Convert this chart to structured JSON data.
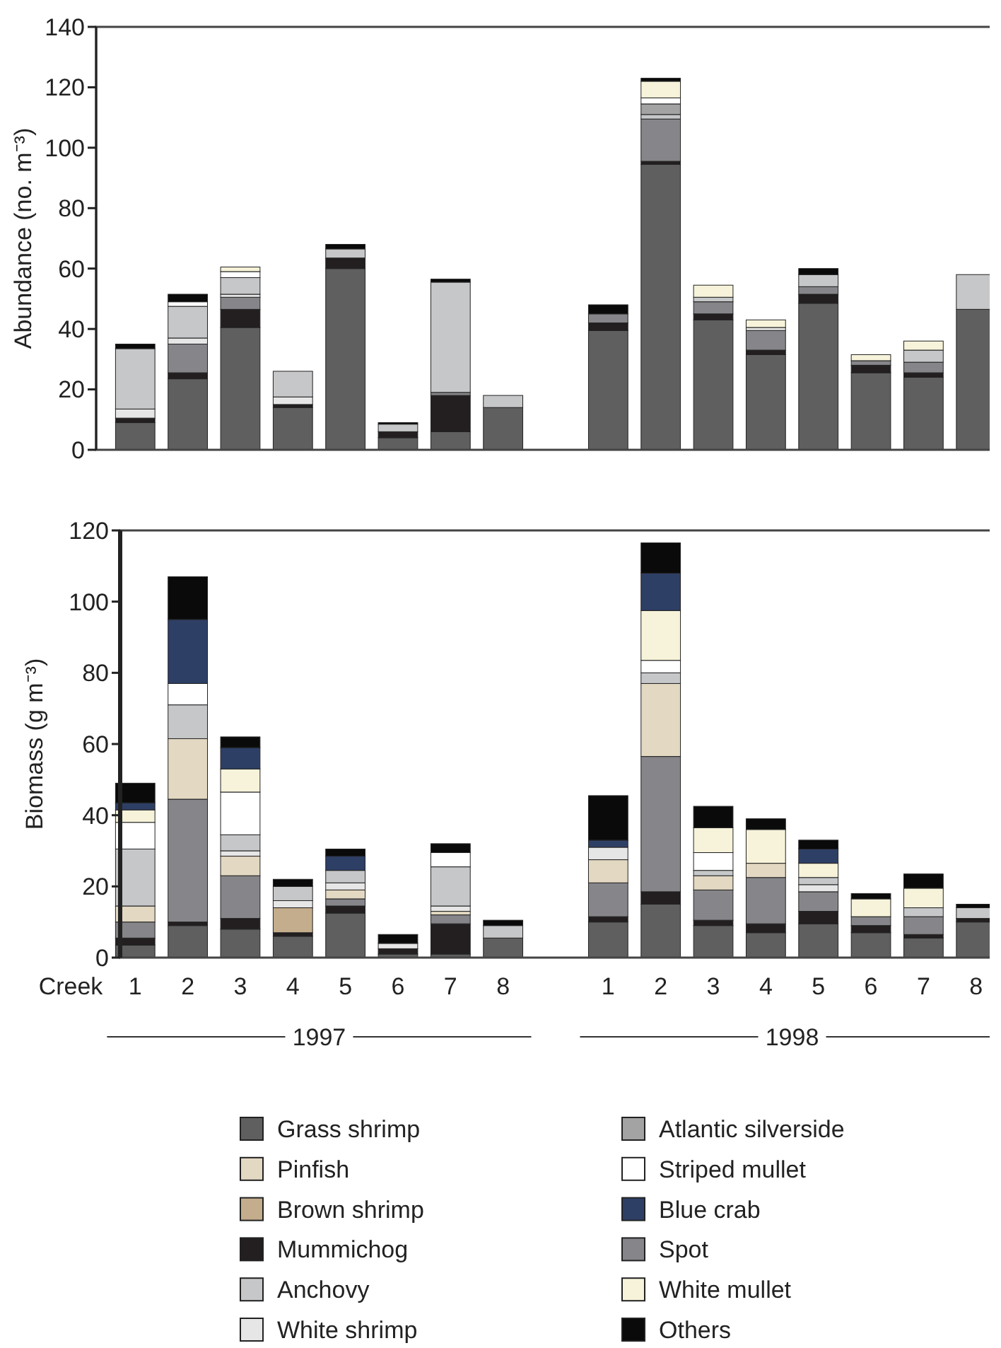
{
  "chart_data": [
    {
      "type": "bar",
      "stacked": true,
      "ylabel": "Abundance (no. m⁻³)",
      "ylim": [
        0,
        140
      ],
      "yticks": [
        0,
        20,
        40,
        60,
        80,
        100,
        120,
        140
      ],
      "tick_labels": "y",
      "categories": [
        "1",
        "2",
        "3",
        "4",
        "5",
        "6",
        "7",
        "8",
        null,
        "1",
        "2",
        "3",
        "4",
        "5",
        "6",
        "7",
        "8"
      ],
      "series": [
        {
          "color": "#5f5f5f",
          "values": [
            9,
            23.5,
            40.5,
            14,
            60,
            4,
            6,
            14,
            null,
            39.5,
            94.5,
            43,
            31.5,
            48.5,
            25.5,
            24,
            46.5
          ]
        },
        {
          "color": "#231f20",
          "values": [
            1.5,
            2,
            6,
            1,
            3.5,
            2,
            12,
            null,
            null,
            2.5,
            1,
            2,
            1.5,
            3,
            2.5,
            1.5,
            null
          ]
        },
        {
          "color": "#86868a",
          "values": [
            null,
            9.5,
            4,
            null,
            null,
            null,
            1,
            null,
            null,
            3,
            14,
            4,
            6.5,
            2.5,
            1.5,
            3.5,
            null
          ]
        },
        {
          "color": "#e6e6e6",
          "values": [
            3,
            2,
            1,
            2.5,
            null,
            null,
            null,
            null,
            null,
            null,
            null,
            null,
            1,
            null,
            null,
            null,
            null
          ]
        },
        {
          "color": "#c6c7c9",
          "values": [
            20,
            10.5,
            5.5,
            8.5,
            3,
            2.5,
            36.5,
            4,
            null,
            null,
            1.5,
            1.5,
            null,
            4,
            null,
            4,
            11.5
          ]
        },
        {
          "color": "#a3a3a3",
          "values": [
            null,
            null,
            null,
            null,
            null,
            null,
            null,
            null,
            null,
            null,
            3.5,
            null,
            null,
            null,
            null,
            null,
            null
          ]
        },
        {
          "color": "#ffffff",
          "values": [
            null,
            1.5,
            2,
            null,
            null,
            null,
            null,
            null,
            null,
            null,
            2,
            null,
            null,
            null,
            null,
            null,
            null
          ]
        },
        {
          "color": "#f6f3da",
          "values": [
            null,
            null,
            1.5,
            null,
            null,
            null,
            null,
            null,
            null,
            null,
            5.5,
            4,
            2.5,
            null,
            2,
            3,
            null
          ]
        },
        {
          "color": "#0a0a0a",
          "values": [
            1.5,
            2.5,
            null,
            null,
            1.5,
            0.5,
            1,
            null,
            null,
            3,
            1,
            null,
            null,
            2,
            null,
            null,
            null
          ]
        }
      ]
    },
    {
      "type": "bar",
      "stacked": true,
      "ylabel": "Biomass (g m⁻³)",
      "xlabel": "Creek",
      "ylim": [
        0,
        120
      ],
      "yticks": [
        0,
        20,
        40,
        60,
        80,
        100,
        120
      ],
      "legend": "bottom",
      "annotations": [
        "1997",
        "1998"
      ],
      "categories": [
        "1",
        "2",
        "3",
        "4",
        "5",
        "6",
        "7",
        "8",
        null,
        "1",
        "2",
        "3",
        "4",
        "5",
        "6",
        "7",
        "8"
      ],
      "series": [
        {
          "name": "Grass shrimp",
          "color": "#5f5f5f",
          "values": [
            3.5,
            9,
            8,
            6,
            12.5,
            1,
            1,
            5.5,
            null,
            10,
            15,
            9,
            7,
            9.5,
            7,
            5.5,
            10
          ]
        },
        {
          "name": "Mummichog",
          "color": "#231f20",
          "values": [
            2,
            1,
            3,
            1,
            2,
            1.5,
            8.5,
            null,
            null,
            1.5,
            3.5,
            1.5,
            2.5,
            3.5,
            2,
            1,
            1
          ]
        },
        {
          "name": "Spot",
          "color": "#86868a",
          "values": [
            4.5,
            34.5,
            12,
            null,
            2,
            null,
            2.5,
            null,
            null,
            9.5,
            38,
            8.5,
            13,
            5.5,
            2.5,
            5,
            null
          ]
        },
        {
          "name": "Brown shrimp",
          "color": "#c4ad8c",
          "values": [
            null,
            null,
            null,
            7,
            null,
            null,
            null,
            null,
            null,
            null,
            null,
            null,
            null,
            null,
            null,
            null,
            null
          ]
        },
        {
          "name": "Pinfish",
          "color": "#e3d8c2",
          "values": [
            4.5,
            17,
            5.5,
            null,
            2.5,
            null,
            1,
            null,
            null,
            6.5,
            20.5,
            4,
            4,
            null,
            null,
            null,
            null
          ]
        },
        {
          "name": "White shrimp",
          "color": "#e6e6e6",
          "values": [
            null,
            null,
            1.5,
            2,
            2,
            1.5,
            1.5,
            null,
            null,
            3.5,
            null,
            null,
            null,
            2,
            null,
            null,
            null
          ]
        },
        {
          "name": "Anchovy",
          "color": "#c6c7c9",
          "values": [
            16,
            9.5,
            4.5,
            4,
            3.5,
            null,
            11,
            3.5,
            null,
            null,
            3,
            1.5,
            null,
            2,
            null,
            2.5,
            3
          ]
        },
        {
          "name": "Atlantic silverside",
          "color": "#a3a3a3",
          "values": [
            null,
            null,
            null,
            null,
            null,
            null,
            null,
            null,
            null,
            null,
            null,
            null,
            null,
            null,
            null,
            null,
            null
          ]
        },
        {
          "name": "Striped mullet",
          "color": "#ffffff",
          "values": [
            7.5,
            6,
            12,
            null,
            null,
            null,
            4,
            null,
            null,
            null,
            3.5,
            5,
            null,
            null,
            null,
            null,
            null
          ]
        },
        {
          "name": "White mullet",
          "color": "#f6f3da",
          "values": [
            3.5,
            null,
            6.5,
            null,
            null,
            null,
            null,
            null,
            null,
            null,
            14,
            7,
            9.5,
            4,
            5,
            5.5,
            null
          ]
        },
        {
          "name": "Blue crab",
          "color": "#2e3f66",
          "values": [
            2,
            18,
            6,
            null,
            4,
            null,
            null,
            null,
            null,
            2,
            10.5,
            null,
            null,
            4,
            null,
            null,
            null
          ]
        },
        {
          "name": "Others",
          "color": "#0a0a0a",
          "values": [
            5.5,
            12,
            3,
            2,
            2,
            2.5,
            2.5,
            1.5,
            null,
            12.5,
            8.5,
            6,
            3,
            2.5,
            1.5,
            4,
            1
          ]
        }
      ]
    }
  ]
}
